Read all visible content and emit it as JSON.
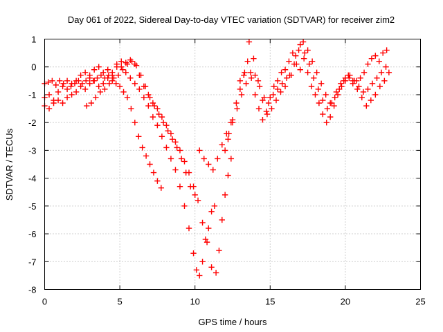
{
  "chart_data": {
    "type": "scatter",
    "title": "Day 061 of 2022, Sidereal Day-to-day VTEC variation (SDTVAR) for receiver zim2",
    "xlabel": "GPS time / hours",
    "ylabel": "SDTVAR / TECUs",
    "xlim": [
      0,
      25
    ],
    "ylim": [
      -8,
      1
    ],
    "xticks": [
      "0",
      "5",
      "10",
      "15",
      "20",
      "25"
    ],
    "yticks": [
      "1",
      "0",
      "-1",
      "-2",
      "-3",
      "-4",
      "-5",
      "-6",
      "-7",
      "-8"
    ],
    "grid": true,
    "marker": "plus",
    "color": "#ff0000",
    "series": [
      {
        "x": [
          0.0,
          0.25,
          0.5,
          0.75,
          1.0,
          1.25,
          1.5,
          1.75,
          2.0,
          2.25,
          2.5,
          2.75,
          3.0,
          3.25,
          3.5,
          3.75,
          4.0,
          4.25,
          4.5,
          4.75,
          5.0,
          5.25,
          5.5,
          5.75,
          6.0,
          6.25,
          6.5,
          6.75,
          7.0,
          7.25,
          7.5,
          7.75
        ],
        "y": [
          -0.6,
          -0.55,
          -0.5,
          -0.65,
          -0.5,
          -0.6,
          -0.5,
          -0.7,
          -0.6,
          -0.5,
          -0.6,
          -0.5,
          -0.4,
          -0.5,
          -0.4,
          -0.3,
          -0.4,
          -0.3,
          -0.5,
          -0.6,
          -0.7,
          -0.9,
          -1.1,
          -1.5,
          -2.0,
          -2.5,
          -2.9,
          -3.2,
          -3.5,
          -3.8,
          -4.1,
          -4.35
        ]
      },
      {
        "x": [
          0.0,
          0.3,
          0.6,
          0.9,
          1.2,
          1.5,
          1.8,
          2.1,
          2.4,
          2.7,
          3.0,
          3.3,
          3.6,
          3.9,
          4.2,
          4.5,
          4.8,
          5.1,
          5.4,
          5.7,
          6.0,
          6.3,
          6.6,
          6.9,
          7.2,
          7.5,
          7.8,
          8.1,
          8.4,
          8.7,
          9.0,
          9.3,
          9.6,
          9.9,
          10.1,
          10.3,
          10.5,
          10.7,
          10.9,
          11.1,
          11.3
        ],
        "y": [
          -1.1,
          -1.0,
          -1.2,
          -0.9,
          -0.7,
          -0.8,
          -0.6,
          -0.5,
          -0.3,
          -0.2,
          -0.3,
          -0.1,
          0.0,
          -0.2,
          -0.1,
          -0.3,
          0.1,
          0.0,
          -0.2,
          -0.4,
          -0.6,
          -0.8,
          -1.1,
          -1.4,
          -1.8,
          -2.1,
          -2.5,
          -2.9,
          -3.3,
          -3.7,
          -4.3,
          -5.0,
          -5.8,
          -6.7,
          -7.3,
          -7.5,
          -7.0,
          -6.2,
          -5.8,
          -5.2,
          -5.0
        ]
      },
      {
        "x": [
          0.0,
          0.3,
          0.6,
          0.9,
          1.2,
          1.5,
          1.8,
          2.1,
          2.4,
          2.7,
          3.0,
          3.3,
          3.6,
          3.9,
          4.2,
          4.5,
          4.8,
          5.1,
          5.4,
          5.7,
          6.0,
          6.3,
          6.6,
          6.9,
          7.2,
          7.5,
          7.8,
          8.1,
          8.4,
          8.7,
          9.0,
          9.3,
          9.6,
          9.9,
          10.2,
          10.5,
          10.8,
          11.1,
          11.4,
          11.6,
          11.8,
          12.0,
          12.2,
          12.4
        ],
        "y": [
          -1.4,
          -1.5,
          -1.3,
          -1.2,
          -1.3,
          -1.1,
          -1.0,
          -0.9,
          -0.7,
          -0.8,
          -0.6,
          -0.5,
          -0.7,
          -0.6,
          -0.4,
          -0.2,
          0.0,
          0.2,
          0.15,
          0.25,
          0.1,
          -0.3,
          -0.7,
          -1.0,
          -1.3,
          -1.5,
          -1.8,
          -2.1,
          -2.4,
          -2.7,
          -3.0,
          -3.4,
          -3.8,
          -4.3,
          -4.8,
          -5.6,
          -6.3,
          -7.2,
          -7.4,
          -6.6,
          -5.5,
          -4.6,
          -3.9,
          -3.3
        ]
      },
      {
        "x": [
          2.8,
          3.1,
          3.4,
          3.7,
          4.0,
          4.3,
          4.6,
          4.9,
          5.2,
          5.5,
          5.8,
          6.1,
          6.4,
          6.7,
          7.0,
          7.3,
          7.6,
          7.9,
          8.2,
          8.5,
          8.8,
          9.1,
          9.4,
          9.7,
          10.0,
          10.3,
          10.6,
          10.9,
          11.2,
          11.5,
          11.8,
          12.1,
          12.4
        ],
        "y": [
          -1.4,
          -1.3,
          -1.1,
          -0.9,
          -0.8,
          -0.6,
          -0.4,
          -0.3,
          -0.1,
          0.1,
          0.2,
          0.05,
          -0.3,
          -0.7,
          -1.1,
          -1.4,
          -1.7,
          -2.0,
          -2.3,
          -2.6,
          -2.9,
          -3.3,
          -3.8,
          -4.3,
          -4.6,
          -3.0,
          -3.3,
          -3.5,
          -3.7,
          -3.3,
          -2.8,
          -2.4,
          -2.0
        ]
      },
      {
        "x": [
          12.0,
          12.25,
          12.5,
          12.75,
          13.0,
          13.25,
          13.5,
          13.75,
          14.0,
          14.25,
          14.5,
          14.75,
          15.0,
          15.25,
          15.5,
          15.75,
          16.0,
          16.25,
          16.5,
          16.75,
          17.0,
          17.25,
          17.5,
          17.75,
          18.0,
          18.25,
          18.5,
          18.75,
          19.0,
          19.25,
          19.5,
          19.75,
          20.0,
          20.25,
          20.5,
          20.75,
          21.0,
          21.25,
          21.5,
          21.75,
          22.0,
          22.25,
          22.5,
          22.75
        ],
        "y": [
          -3.0,
          -2.4,
          -1.9,
          -1.3,
          -0.8,
          -0.3,
          0.2,
          -0.4,
          -1.0,
          -1.5,
          -1.9,
          -1.6,
          -1.1,
          -0.7,
          -0.5,
          -0.2,
          -0.1,
          0.2,
          0.5,
          0.1,
          -0.1,
          0.3,
          -0.2,
          -0.7,
          -1.0,
          -1.3,
          -1.7,
          -2.0,
          -1.8,
          -1.4,
          -1.0,
          -0.7,
          -0.5,
          -0.4,
          -0.6,
          -0.5,
          -0.4,
          -0.2,
          0.1,
          0.3,
          0.4,
          0.2,
          0.5,
          0.6
        ]
      },
      {
        "x": [
          12.2,
          12.5,
          12.8,
          13.1,
          13.4,
          13.7,
          14.0,
          14.3,
          14.6,
          14.9,
          15.2,
          15.5,
          15.8,
          16.1,
          16.4,
          16.7,
          17.0,
          17.3,
          17.6,
          17.9,
          18.2,
          18.5,
          18.8,
          19.1,
          19.4,
          19.7,
          20.0,
          20.3,
          20.6,
          20.9,
          21.2,
          21.5,
          21.8,
          22.1,
          22.4,
          22.7
        ],
        "y": [
          -2.6,
          -2.0,
          -1.5,
          -1.0,
          -0.6,
          -0.2,
          -0.3,
          -0.7,
          -1.1,
          -1.3,
          -1.0,
          -0.8,
          -0.6,
          -0.4,
          -0.3,
          0.4,
          0.8,
          0.5,
          0.1,
          -0.4,
          -0.8,
          -1.2,
          -1.5,
          -1.3,
          -0.9,
          -0.6,
          -0.4,
          -0.3,
          -0.5,
          -0.7,
          -0.9,
          -0.8,
          -0.6,
          -0.4,
          -0.2,
          0.0
        ]
      },
      {
        "x": [
          13.0,
          13.3,
          13.6,
          13.9,
          14.2,
          14.5,
          14.8,
          15.1,
          15.4,
          15.7,
          16.0,
          16.3,
          16.6,
          16.9,
          17.2,
          17.5,
          17.8,
          18.1,
          18.4,
          18.7,
          19.0,
          19.3,
          19.6,
          19.9,
          20.2,
          20.5,
          20.8,
          21.1,
          21.4,
          21.7,
          22.0,
          22.3,
          22.6,
          22.9
        ],
        "y": [
          -0.5,
          -0.2,
          0.9,
          0.3,
          -0.5,
          -1.2,
          -1.7,
          -1.5,
          -1.2,
          -0.9,
          -0.7,
          -0.3,
          0.1,
          0.6,
          0.9,
          0.6,
          0.2,
          -0.2,
          -0.6,
          -1.0,
          -1.3,
          -1.1,
          -0.8,
          -0.5,
          -0.3,
          -0.5,
          -0.8,
          -1.1,
          -1.4,
          -1.2,
          -1.0,
          -0.7,
          -0.5,
          -0.2
        ]
      }
    ]
  }
}
